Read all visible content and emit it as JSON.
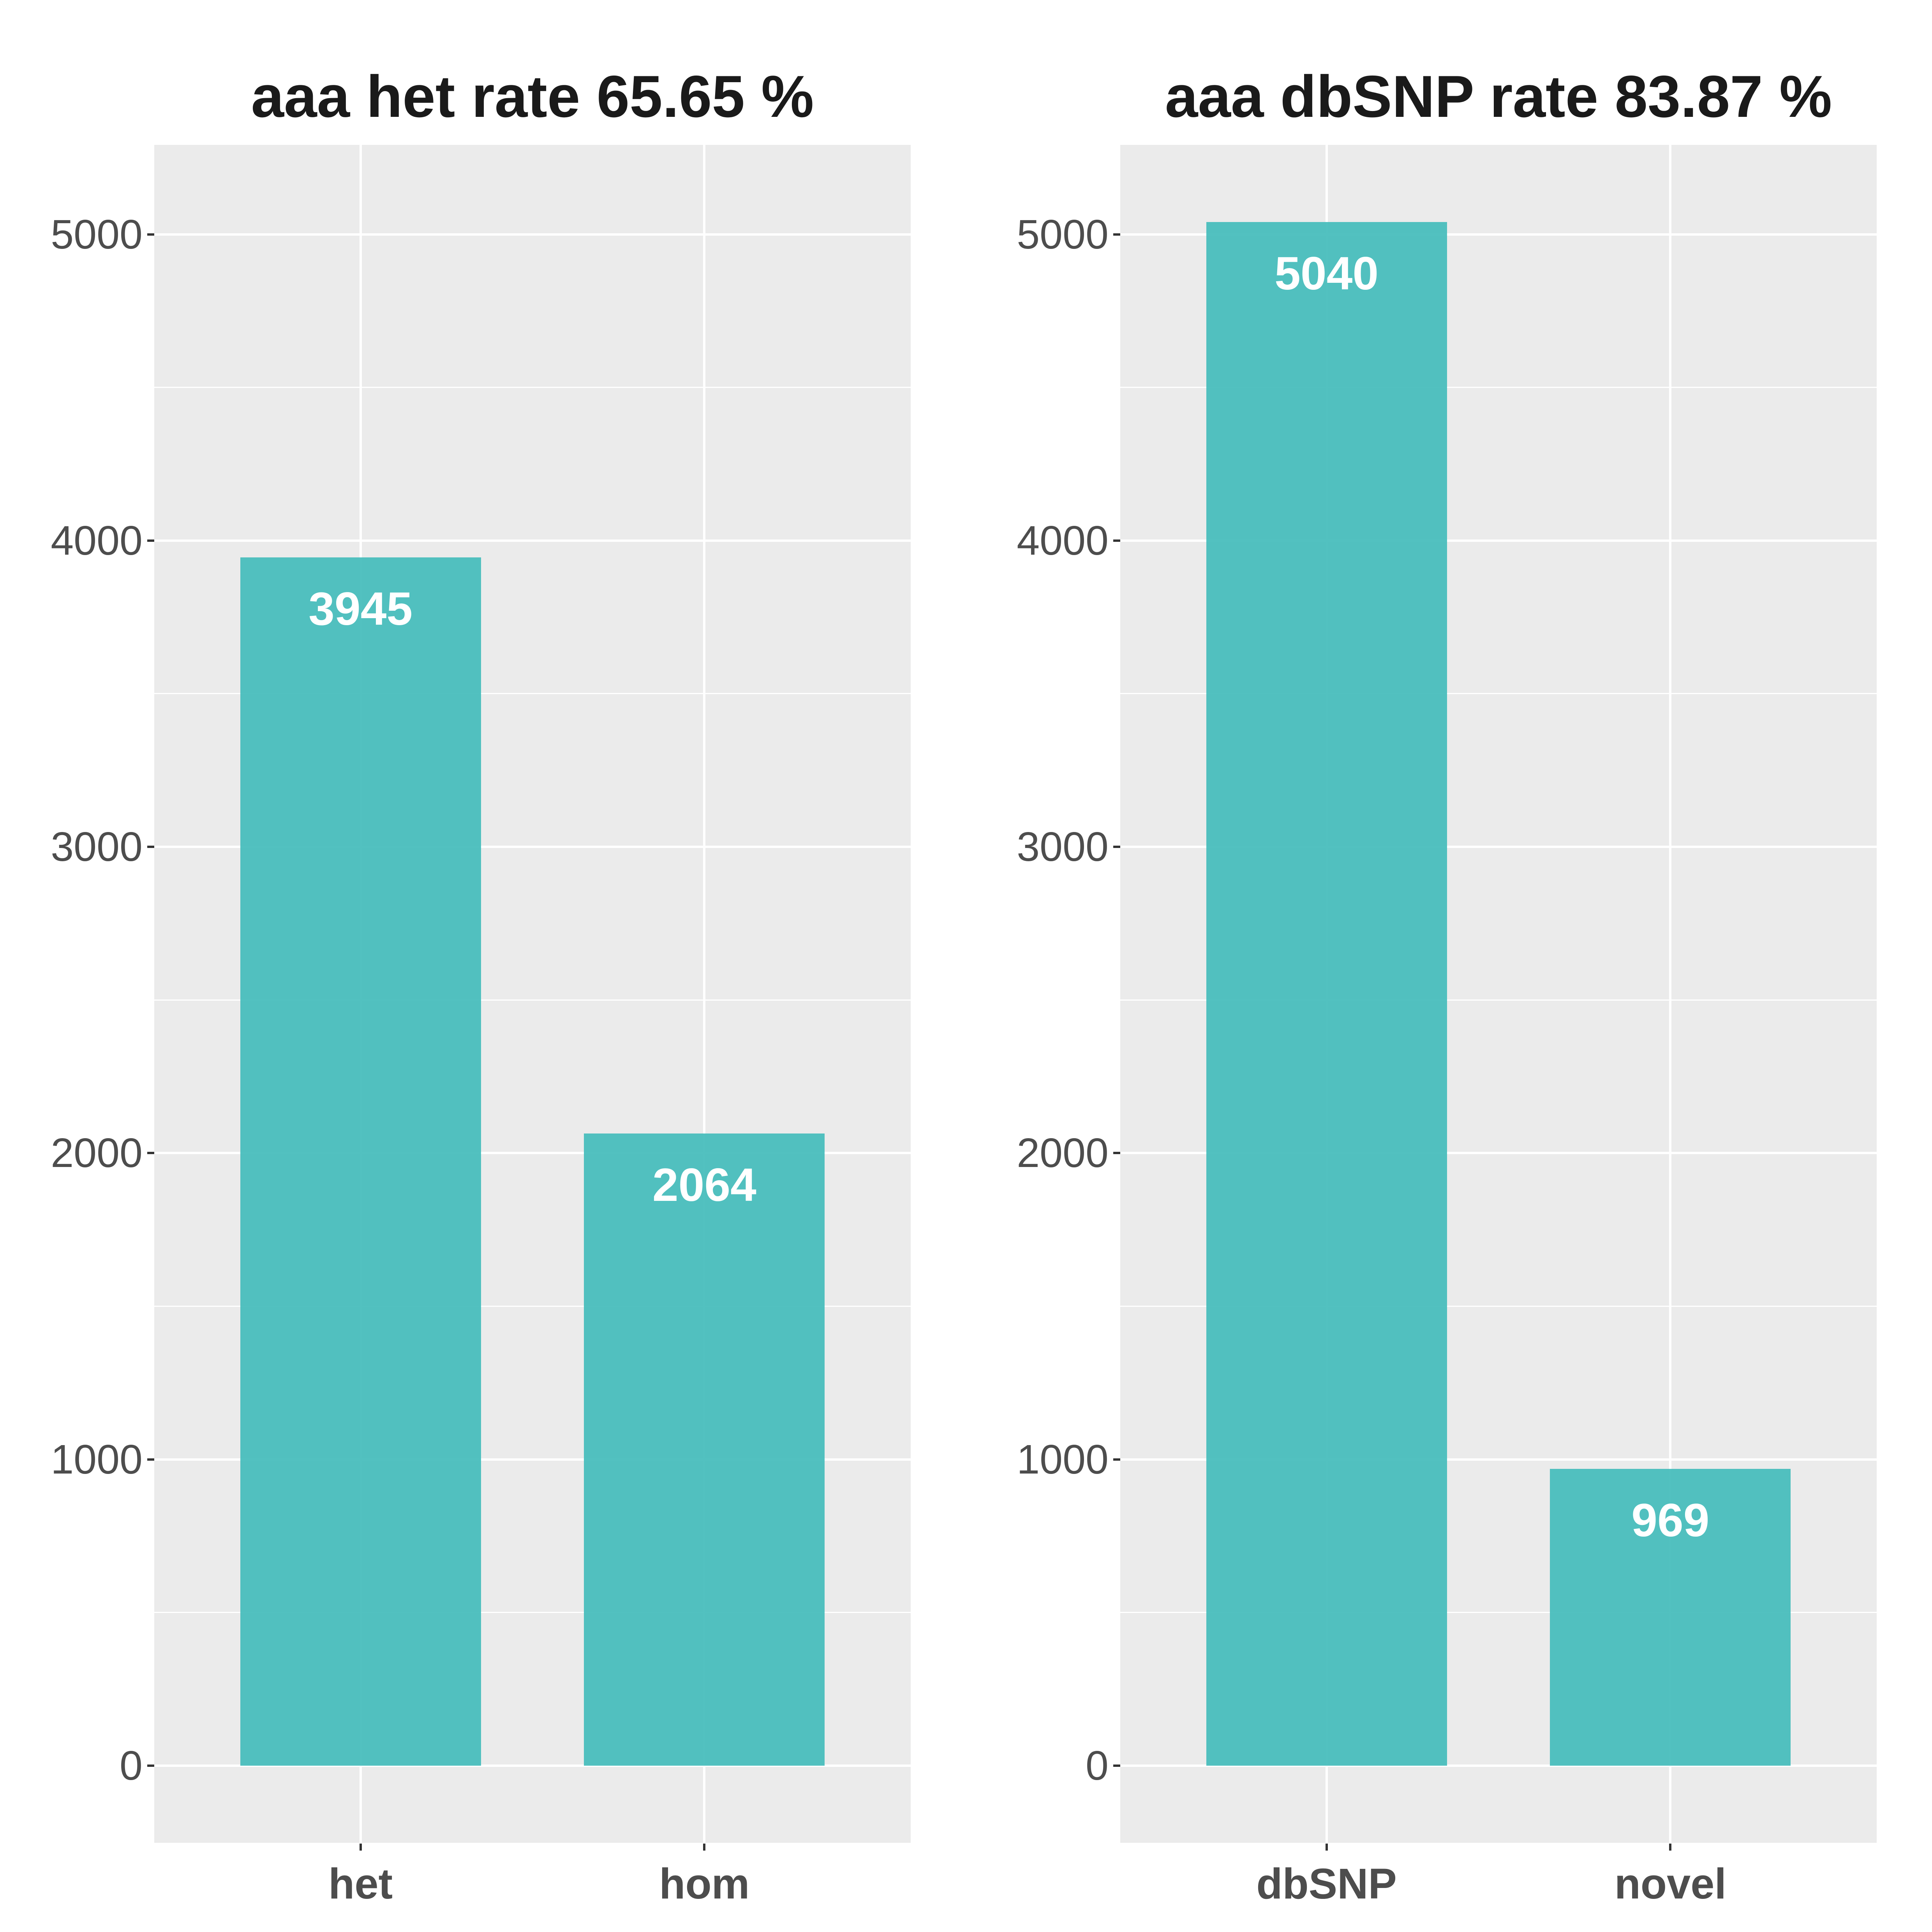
{
  "figure": {
    "background": "#FFFFFF",
    "kind": "two-panel bar chart figure"
  },
  "colors": {
    "bar": "#49BEBD",
    "panel_background": "#EBEBEB",
    "gridline": "#FFFFFF",
    "axis_text": "#4D4D4D",
    "tick_mark": "#333333",
    "title_text": "#1A1A1A",
    "bar_value_text": "#FFFFFF"
  },
  "chart_data": [
    {
      "type": "bar",
      "title": "aaa het rate 65.65 %",
      "categories": [
        "het",
        "hom"
      ],
      "values": [
        3945,
        2064
      ],
      "value_labels": [
        "3945",
        "2064"
      ],
      "xlabel": "",
      "ylabel": "",
      "yticks": [
        0,
        1000,
        2000,
        3000,
        4000,
        5000
      ],
      "ytick_labels": [
        "0",
        "1000",
        "2000",
        "3000",
        "4000",
        "5000"
      ],
      "yminor": [
        500,
        1500,
        2500,
        3500,
        4500
      ],
      "ylim": [
        -252,
        5292
      ],
      "grid": "on",
      "legend": "none",
      "bar_color": "#49BEBD"
    },
    {
      "type": "bar",
      "title": "aaa dbSNP rate 83.87 %",
      "categories": [
        "dbSNP",
        "novel"
      ],
      "values": [
        5040,
        969
      ],
      "value_labels": [
        "5040",
        "969"
      ],
      "xlabel": "",
      "ylabel": "",
      "yticks": [
        0,
        1000,
        2000,
        3000,
        4000,
        5000
      ],
      "ytick_labels": [
        "0",
        "1000",
        "2000",
        "3000",
        "4000",
        "5000"
      ],
      "yminor": [
        500,
        1500,
        2500,
        3500,
        4500
      ],
      "ylim": [
        -252,
        5292
      ],
      "grid": "on",
      "legend": "none",
      "bar_color": "#49BEBD"
    }
  ]
}
